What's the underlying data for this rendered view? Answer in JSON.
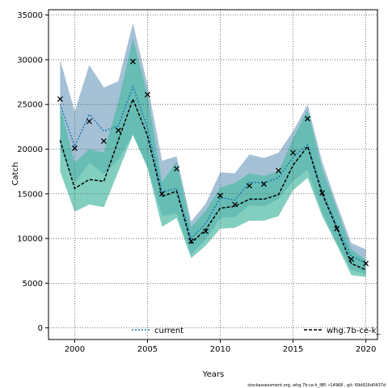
{
  "chart_data": {
    "type": "line",
    "xlabel": "Years",
    "ylabel": "Catch",
    "xlim": [
      1998.2,
      2020.8
    ],
    "ylim": [
      -1300,
      35600
    ],
    "x_ticks": [
      2000,
      2005,
      2010,
      2015,
      2020
    ],
    "y_ticks": [
      0,
      5000,
      10000,
      15000,
      20000,
      25000,
      30000,
      35000
    ],
    "grid": true,
    "legend_position": "bottom",
    "footnote": "stockassessment.org, whg.7b-ce-k_IBP, r14968 , git: 69d926d0437d",
    "series": [
      {
        "name": "current",
        "color": "#1f78b4",
        "band_color": "#7fa7c4",
        "x": [
          1999,
          2000,
          2001,
          2002,
          2003,
          2004,
          2005,
          2006,
          2007,
          2008,
          2009,
          2010,
          2011,
          2012,
          2013,
          2014,
          2015,
          2016,
          2017,
          2018,
          2019,
          2020
        ],
        "y": [
          25000,
          20300,
          23900,
          22000,
          22600,
          27000,
          22400,
          15200,
          15600,
          10000,
          11700,
          14600,
          14300,
          16300,
          16200,
          16800,
          19100,
          20500,
          15300,
          11400,
          8000,
          7300
        ],
        "lower": [
          20000,
          16200,
          18500,
          17200,
          18800,
          21600,
          18000,
          12500,
          12800,
          8200,
          9900,
          12300,
          12400,
          13700,
          13600,
          14400,
          16400,
          17700,
          12900,
          9500,
          6500,
          6000
        ],
        "upper": [
          30000,
          24200,
          29400,
          26900,
          27600,
          34100,
          27200,
          18700,
          19200,
          11900,
          13900,
          17400,
          17300,
          19400,
          19000,
          19600,
          22000,
          25000,
          18600,
          13900,
          9500,
          8800
        ]
      },
      {
        "name": "whg.7b-ce-k_",
        "color": "#000000",
        "band_color": "#4dbaa5",
        "x": [
          1999,
          2000,
          2001,
          2002,
          2003,
          2004,
          2005,
          2006,
          2007,
          2008,
          2009,
          2010,
          2011,
          2012,
          2013,
          2014,
          2015,
          2016,
          2017,
          2018,
          2019,
          2020
        ],
        "y": [
          21000,
          15600,
          16600,
          16400,
          21000,
          25600,
          21500,
          14700,
          15300,
          9500,
          11000,
          13400,
          13600,
          14400,
          14400,
          14900,
          18200,
          20300,
          15000,
          11200,
          7200,
          6500
        ],
        "lower": [
          17500,
          13000,
          13800,
          13500,
          17500,
          21600,
          17900,
          11300,
          12300,
          7800,
          9200,
          11100,
          11200,
          12000,
          12000,
          12500,
          15400,
          16800,
          12500,
          9300,
          5900,
          5700
        ],
        "upper": [
          24800,
          18500,
          20000,
          19600,
          25300,
          32400,
          26100,
          16300,
          18600,
          11300,
          13100,
          15700,
          16200,
          17300,
          17000,
          17500,
          21200,
          24400,
          17800,
          13400,
          8800,
          7600
        ]
      }
    ],
    "observed": {
      "marker": "x",
      "x": [
        1999,
        2000,
        2001,
        2002,
        2003,
        2004,
        2005,
        2006,
        2007,
        2008,
        2009,
        2010,
        2011,
        2012,
        2013,
        2014,
        2015,
        2016,
        2017,
        2018,
        2019,
        2020
      ],
      "y": [
        25600,
        20100,
        23100,
        20900,
        22100,
        29800,
        26100,
        15000,
        17800,
        9700,
        10800,
        14800,
        13800,
        15900,
        16100,
        17600,
        19600,
        23400,
        15100,
        11100,
        7700,
        7200
      ]
    }
  }
}
